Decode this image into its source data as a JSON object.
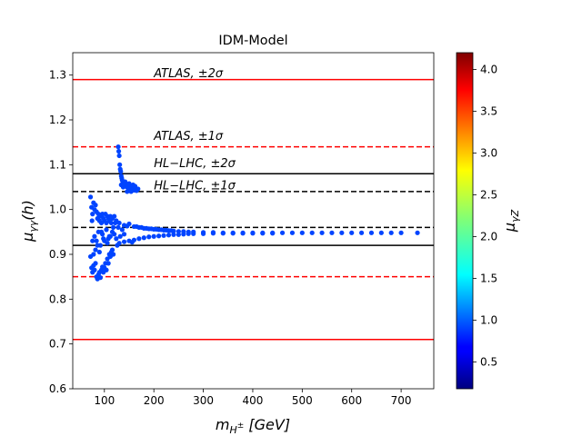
{
  "chart_data": {
    "type": "scatter",
    "title": "IDM-Model",
    "xlabel": "m_{H^±} [GeV]",
    "ylabel": "μ_{γγ}(h)",
    "xlim": [
      36,
      766
    ],
    "ylim": [
      0.6,
      1.35
    ],
    "x_ticks": [
      100,
      200,
      300,
      400,
      500,
      600,
      700
    ],
    "x_tick_labels": [
      "100",
      "200",
      "300",
      "400",
      "500",
      "600",
      "700"
    ],
    "y_ticks": [
      0.6,
      0.7,
      0.8,
      0.9,
      1.0,
      1.1,
      1.2,
      1.3
    ],
    "y_tick_labels": [
      "0.6",
      "0.7",
      "0.8",
      "0.9",
      "1.0",
      "1.1",
      "1.2",
      "1.3"
    ],
    "reference_lines": [
      {
        "y": 1.29,
        "color": "#ff0000",
        "style": "solid"
      },
      {
        "y": 0.71,
        "color": "#ff0000",
        "style": "solid"
      },
      {
        "y": 1.14,
        "color": "#ff0000",
        "style": "dashed"
      },
      {
        "y": 0.85,
        "color": "#ff0000",
        "style": "dashed"
      },
      {
        "y": 1.08,
        "color": "#000000",
        "style": "solid"
      },
      {
        "y": 0.92,
        "color": "#000000",
        "style": "solid"
      },
      {
        "y": 1.04,
        "color": "#000000",
        "style": "dashed"
      },
      {
        "y": 0.96,
        "color": "#000000",
        "style": "dashed"
      }
    ],
    "annotations": [
      {
        "x": 200,
        "y": 1.295,
        "label": "ATLAS, ±2σ"
      },
      {
        "x": 200,
        "y": 1.155,
        "label": "ATLAS, ±1σ"
      },
      {
        "x": 200,
        "y": 1.095,
        "label": "HL−LHC, ±2σ"
      },
      {
        "x": 200,
        "y": 1.045,
        "label": "HL−LHC, ±1σ"
      }
    ],
    "colorbar": {
      "label": "μ_{γZ}",
      "range": [
        0.18,
        4.2
      ],
      "ticks": [
        0.5,
        1.0,
        1.5,
        2.0,
        2.5,
        3.0,
        3.5,
        4.0
      ],
      "tick_labels": [
        "0.5",
        "1.0",
        "1.5",
        "2.0",
        "2.5",
        "3.0",
        "3.5",
        "4.0"
      ],
      "colormap": "jet"
    },
    "marker_color": "#0044ff",
    "series": [
      {
        "name": "scan points",
        "points": [
          [
            72,
            1.028
          ],
          [
            74,
            1.005
          ],
          [
            76,
            0.99
          ],
          [
            75,
            0.975
          ],
          [
            78,
            1.015
          ],
          [
            80,
            1.0
          ],
          [
            82,
            1.01
          ],
          [
            84,
            0.995
          ],
          [
            86,
            0.98
          ],
          [
            88,
            0.99
          ],
          [
            90,
            0.975
          ],
          [
            92,
            0.985
          ],
          [
            94,
            0.97
          ],
          [
            96,
            0.99
          ],
          [
            98,
            0.98
          ],
          [
            100,
            0.975
          ],
          [
            102,
            0.99
          ],
          [
            104,
            0.97
          ],
          [
            106,
            0.985
          ],
          [
            108,
            0.98
          ],
          [
            110,
            0.975
          ],
          [
            112,
            0.985
          ],
          [
            114,
            0.97
          ],
          [
            116,
            0.98
          ],
          [
            72,
            0.895
          ],
          [
            74,
            0.87
          ],
          [
            76,
            0.86
          ],
          [
            78,
            0.875
          ],
          [
            80,
            0.865
          ],
          [
            82,
            0.88
          ],
          [
            84,
            0.85
          ],
          [
            86,
            0.845
          ],
          [
            88,
            0.855
          ],
          [
            90,
            0.86
          ],
          [
            92,
            0.848
          ],
          [
            94,
            0.865
          ],
          [
            96,
            0.872
          ],
          [
            98,
            0.86
          ],
          [
            100,
            0.87
          ],
          [
            102,
            0.88
          ],
          [
            104,
            0.865
          ],
          [
            106,
            0.89
          ],
          [
            108,
            0.88
          ],
          [
            110,
            0.9
          ],
          [
            112,
            0.895
          ],
          [
            114,
            0.905
          ],
          [
            116,
            0.91
          ],
          [
            118,
            0.9
          ],
          [
            80,
            0.94
          ],
          [
            84,
            0.93
          ],
          [
            88,
            0.95
          ],
          [
            92,
            0.92
          ],
          [
            96,
            0.945
          ],
          [
            100,
            0.93
          ],
          [
            104,
            0.955
          ],
          [
            108,
            0.935
          ],
          [
            112,
            0.94
          ],
          [
            116,
            0.95
          ],
          [
            120,
            0.945
          ],
          [
            124,
            0.935
          ],
          [
            128,
            0.96
          ],
          [
            132,
            0.94
          ],
          [
            136,
            0.955
          ],
          [
            140,
            0.945
          ],
          [
            128,
            1.14
          ],
          [
            129,
            1.13
          ],
          [
            130,
            1.12
          ],
          [
            131,
            1.1
          ],
          [
            132,
            1.09
          ],
          [
            133,
            1.085
          ],
          [
            134,
            1.075
          ],
          [
            135,
            1.07
          ],
          [
            136,
            1.065
          ],
          [
            138,
            1.06
          ],
          [
            140,
            1.058
          ],
          [
            142,
            1.055
          ],
          [
            144,
            1.052
          ],
          [
            146,
            1.05
          ],
          [
            148,
            1.048
          ],
          [
            150,
            1.045
          ],
          [
            152,
            1.05
          ],
          [
            154,
            1.048
          ],
          [
            156,
            1.044
          ],
          [
            158,
            1.046
          ],
          [
            160,
            1.043
          ],
          [
            162,
            1.045
          ],
          [
            165,
            1.042
          ],
          [
            168,
            1.046
          ],
          [
            134,
            1.055
          ],
          [
            138,
            1.05
          ],
          [
            142,
            1.062
          ],
          [
            146,
            1.04
          ],
          [
            150,
            1.058
          ],
          [
            154,
            1.04
          ],
          [
            158,
            1.055
          ],
          [
            162,
            1.052
          ],
          [
            130,
            0.97
          ],
          [
            140,
            0.965
          ],
          [
            150,
            0.968
          ],
          [
            160,
            0.962
          ],
          [
            170,
            0.96
          ],
          [
            180,
            0.958
          ],
          [
            190,
            0.957
          ],
          [
            200,
            0.956
          ],
          [
            130,
            0.925
          ],
          [
            140,
            0.928
          ],
          [
            150,
            0.93
          ],
          [
            160,
            0.932
          ],
          [
            170,
            0.935
          ],
          [
            180,
            0.937
          ],
          [
            190,
            0.939
          ],
          [
            200,
            0.94
          ],
          [
            210,
            0.955
          ],
          [
            220,
            0.954
          ],
          [
            230,
            0.953
          ],
          [
            240,
            0.952
          ],
          [
            250,
            0.951
          ],
          [
            260,
            0.951
          ],
          [
            270,
            0.95
          ],
          [
            280,
            0.95
          ],
          [
            210,
            0.941
          ],
          [
            220,
            0.942
          ],
          [
            230,
            0.943
          ],
          [
            240,
            0.944
          ],
          [
            250,
            0.944
          ],
          [
            260,
            0.945
          ],
          [
            270,
            0.946
          ],
          [
            280,
            0.946
          ],
          [
            300,
            0.949
          ],
          [
            320,
            0.949
          ],
          [
            340,
            0.948
          ],
          [
            360,
            0.948
          ],
          [
            380,
            0.948
          ],
          [
            400,
            0.948
          ],
          [
            420,
            0.948
          ],
          [
            440,
            0.948
          ],
          [
            300,
            0.946
          ],
          [
            320,
            0.947
          ],
          [
            340,
            0.947
          ],
          [
            360,
            0.947
          ],
          [
            380,
            0.947
          ],
          [
            400,
            0.947
          ],
          [
            420,
            0.947
          ],
          [
            440,
            0.947
          ],
          [
            460,
            0.948
          ],
          [
            480,
            0.948
          ],
          [
            500,
            0.948
          ],
          [
            520,
            0.948
          ],
          [
            540,
            0.948
          ],
          [
            560,
            0.948
          ],
          [
            580,
            0.948
          ],
          [
            600,
            0.948
          ],
          [
            620,
            0.948
          ],
          [
            640,
            0.948
          ],
          [
            660,
            0.948
          ],
          [
            680,
            0.948
          ],
          [
            700,
            0.948
          ],
          [
            733,
            0.948
          ],
          [
            165,
            0.962
          ],
          [
            175,
            0.96
          ],
          [
            185,
            0.958
          ],
          [
            195,
            0.957
          ],
          [
            205,
            0.956
          ],
          [
            215,
            0.955
          ],
          [
            225,
            0.954
          ],
          [
            235,
            0.953
          ],
          [
            122,
            0.97
          ],
          [
            126,
            0.92
          ],
          [
            118,
            0.96
          ],
          [
            110,
            0.94
          ],
          [
            106,
            0.925
          ],
          [
            98,
            0.935
          ],
          [
            94,
            0.95
          ],
          [
            90,
            0.905
          ],
          [
            86,
            0.92
          ],
          [
            82,
            0.91
          ],
          [
            78,
            0.9
          ],
          [
            76,
            0.93
          ],
          [
            120,
            0.985
          ],
          [
            124,
            0.975
          ],
          [
            146,
            0.963
          ],
          [
            156,
            0.927
          ]
        ]
      }
    ]
  }
}
